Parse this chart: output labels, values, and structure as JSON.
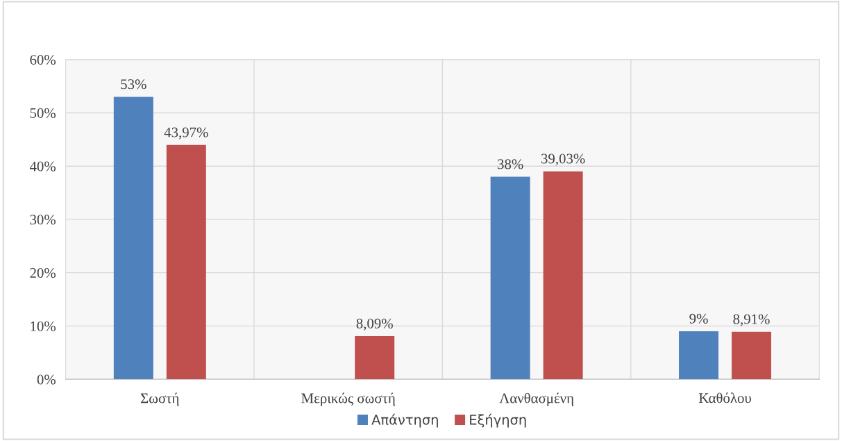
{
  "chart_data": {
    "type": "bar",
    "categories": [
      "Σωστή",
      "Μερικώς σωστή",
      "Λανθασμένη",
      "Καθόλου"
    ],
    "series": [
      {
        "name": "Απάντηση",
        "color": "#4f81bd",
        "values": [
          53,
          null,
          38,
          9
        ],
        "value_labels": [
          "53%",
          null,
          "38%",
          "9%"
        ]
      },
      {
        "name": "Εξήγηση",
        "color": "#c0504d",
        "values": [
          43.97,
          8.09,
          39.03,
          8.91
        ],
        "value_labels": [
          "43,97%",
          "8,09%",
          "39,03%",
          "8,91%"
        ]
      }
    ],
    "ylim": [
      0,
      60
    ],
    "yticks": [
      {
        "value": 0,
        "label": "0%"
      },
      {
        "value": 10,
        "label": "10%"
      },
      {
        "value": 20,
        "label": "20%"
      },
      {
        "value": 30,
        "label": "30%"
      },
      {
        "value": 40,
        "label": "40%"
      },
      {
        "value": 50,
        "label": "50%"
      },
      {
        "value": 60,
        "label": "60%"
      }
    ],
    "grid": true,
    "legend": "bottom"
  }
}
